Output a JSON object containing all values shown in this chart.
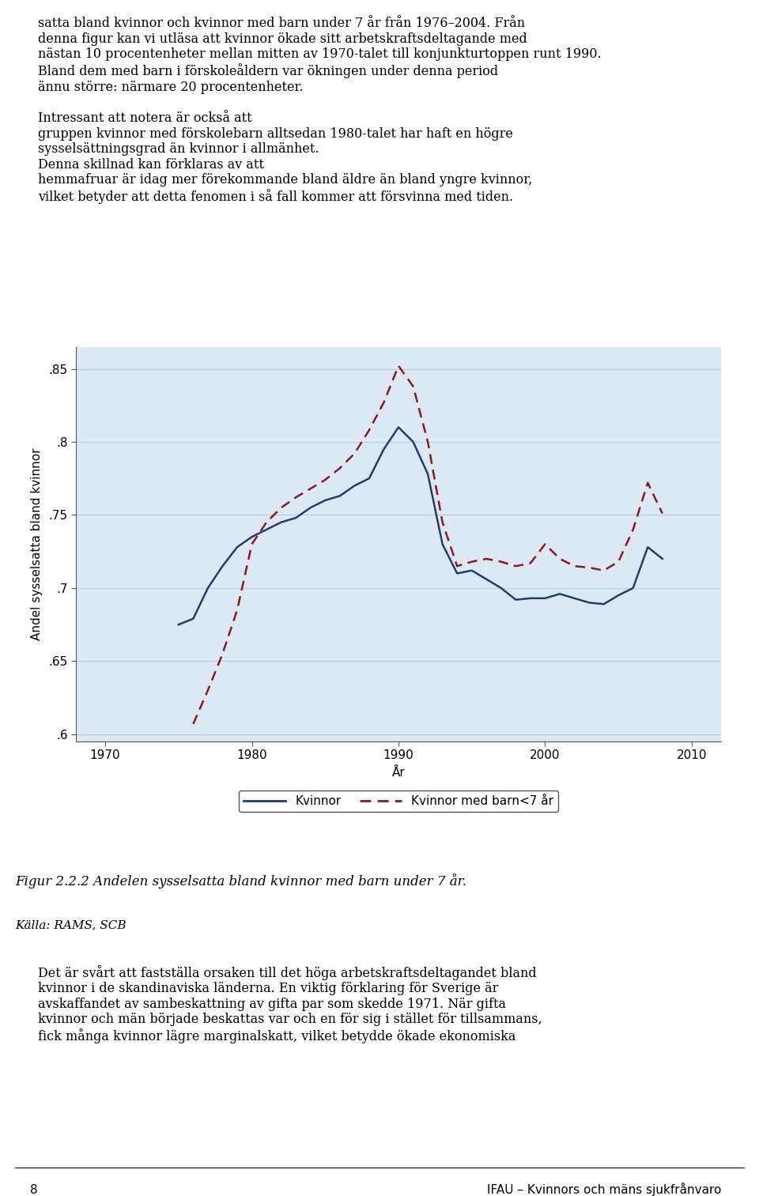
{
  "title_text": "",
  "ylabel": "Andel sysselsatta bland kvinnor",
  "xlabel": "År",
  "bg_color": "#dce9f5",
  "plot_bg_color": "#dce9f5",
  "ylim": [
    0.595,
    0.865
  ],
  "xlim": [
    1968,
    2012
  ],
  "yticks": [
    0.6,
    0.65,
    0.7,
    0.75,
    0.8,
    0.85
  ],
  "ytick_labels": [
    ".6",
    ".65",
    ".7",
    ".75",
    ".8",
    ".85"
  ],
  "xticks": [
    1970,
    1980,
    1990,
    2000,
    2010
  ],
  "grid_color": "#c0cfe0",
  "kvinnor_x": [
    1975,
    1976,
    1977,
    1978,
    1979,
    1980,
    1981,
    1982,
    1983,
    1984,
    1985,
    1986,
    1987,
    1988,
    1989,
    1990,
    1991,
    1992,
    1993,
    1994,
    1995,
    1996,
    1997,
    1998,
    1999,
    2000,
    2001,
    2002,
    2003,
    2004,
    2005,
    2006,
    2007,
    2008
  ],
  "kvinnor_y": [
    0.675,
    0.679,
    0.7,
    0.715,
    0.728,
    0.735,
    0.74,
    0.745,
    0.748,
    0.755,
    0.76,
    0.763,
    0.77,
    0.775,
    0.795,
    0.81,
    0.8,
    0.778,
    0.73,
    0.71,
    0.712,
    0.706,
    0.7,
    0.692,
    0.693,
    0.693,
    0.696,
    0.693,
    0.69,
    0.689,
    0.695,
    0.7,
    0.728,
    0.72
  ],
  "kvinnor_color": "#1f3f6e",
  "kvinnor_label": "Kvinnor",
  "barn_x": [
    1976,
    1977,
    1978,
    1979,
    1980,
    1981,
    1982,
    1983,
    1984,
    1985,
    1986,
    1987,
    1988,
    1989,
    1990,
    1991,
    1992,
    1993,
    1994,
    1995,
    1996,
    1997,
    1998,
    1999,
    2000,
    2001,
    2002,
    2003,
    2004,
    2005,
    2006,
    2007,
    2008
  ],
  "barn_y": [
    0.607,
    0.63,
    0.655,
    0.685,
    0.73,
    0.745,
    0.755,
    0.762,
    0.768,
    0.774,
    0.782,
    0.792,
    0.808,
    0.827,
    0.852,
    0.838,
    0.8,
    0.745,
    0.715,
    0.718,
    0.72,
    0.718,
    0.715,
    0.717,
    0.73,
    0.72,
    0.715,
    0.714,
    0.712,
    0.718,
    0.74,
    0.772,
    0.751
  ],
  "barn_color": "#8b1a1a",
  "barn_label": "Kvinnor med barn<7 år",
  "legend_box_color": "white",
  "legend_box_edge": "#555555",
  "figure_caption": "Figur 2.2.2 Andelen sysselsatta bland kvinnor med barn under 7 år.",
  "source_text": "Källa: RAMS, SCB",
  "top_text_lines": [
    "satta bland kvinnor och kvinnor med barn under 7 år från 1976–2004. Från",
    "denna figur kan vi utläsa att kvinnor ökade sitt arbetskraftsdeltagande med",
    "nästan 10 procentenheter mellan mitten av 1970-talet till konjunkturtoppen runt 1990.",
    "Bland dem med barn i förskoleåldern var ökningen under denna period",
    "ännu större: närmare 20 procentenheter.",
    "",
    "Intressant att notera är också att",
    "gruppen kvinnor med förskolebarn alltsedan 1980-talet har haft en högre",
    "sysselsättningsgrad än kvinnor i allmänhet.",
    "Denna skillnad kan förklaras av att",
    "hemmafruar är idag mer förekommande bland äldre än bland yngre kvinnor,",
    "vilket betyder att detta fenomen i så fall kommer att försvinna med tiden."
  ],
  "bottom_text_lines": [
    "Det är svårt att fastställa orsaken till det höga arbetskraftsdeltagandet bland",
    "kvinnor i de skandinaviska länderna. En viktig förklaring för Sverige är",
    "avskaffandet av sambeskattning av gifta par som skedde 1971. När gifta",
    "kvinnor och män började beskattas var och en för sig i stället för tillsammans,",
    "fick många kvinnor lägre marginalskatt, vilket betydde ökade ekonomiska"
  ]
}
